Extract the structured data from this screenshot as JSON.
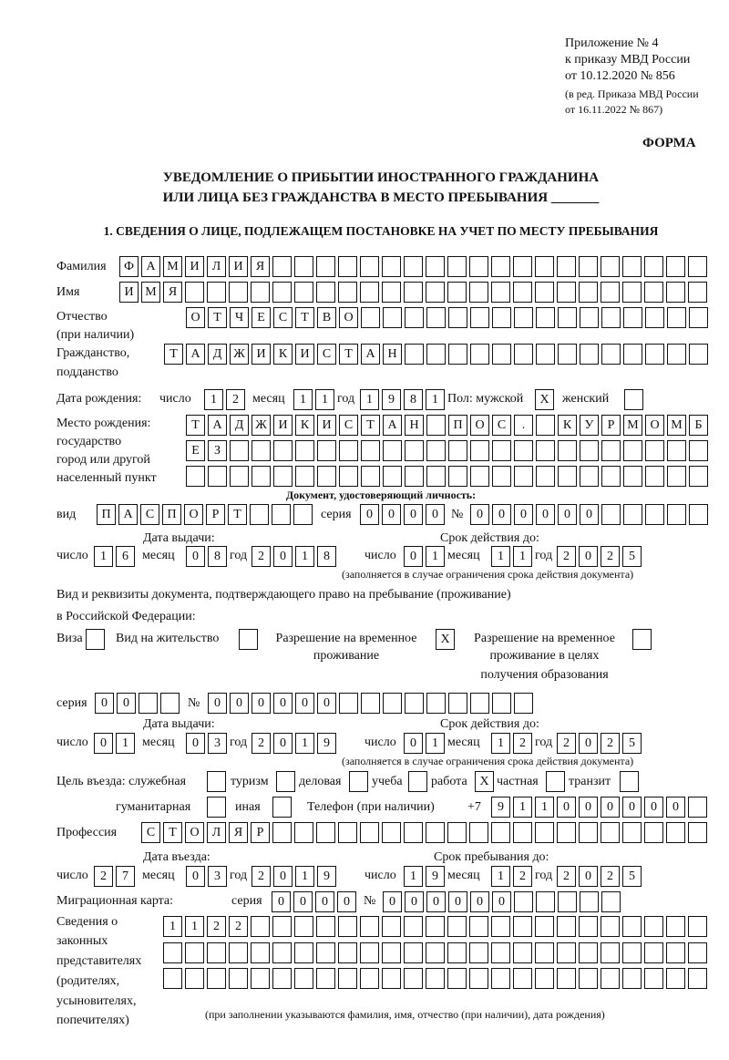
{
  "header": {
    "appendix_line1": "Приложение № 4",
    "appendix_line2": "к приказу МВД России",
    "appendix_line3": "от 10.12.2020 № 856",
    "edition_line1": "(в ред. Приказа МВД России",
    "edition_line2": "от 16.11.2022 № 867)",
    "form_label": "ФОРМА",
    "title_line1": "УВЕДОМЛЕНИЕ О ПРИБЫТИИ ИНОСТРАННОГО ГРАЖДАНИНА",
    "title_line2": "ИЛИ ЛИЦА БЕЗ ГРАЖДАНСТВА В МЕСТО ПРЕБЫВАНИЯ _______",
    "section1_title": "1. СВЕДЕНИЯ О ЛИЦЕ, ПОДЛЕЖАЩЕМ ПОСТАНОВКЕ НА УЧЕТ ПО МЕСТУ ПРЕБЫВАНИЯ"
  },
  "person": {
    "surname": {
      "label": "Фамилия",
      "value": "ФАМИЛИЯ"
    },
    "name": {
      "label": "Имя",
      "value": "ИМЯ"
    },
    "patronymic": {
      "label": "Отчество",
      "label_note": "(при наличии)",
      "value": "ОТЧЕСТВО"
    },
    "citizenship": {
      "label1": "Гражданство,",
      "label2": "подданство",
      "value": "ТАДЖИКИСТАН"
    },
    "birth_date": {
      "label": "Дата рождения:",
      "day_label": "число",
      "day": "12",
      "month_label": "месяц",
      "month": "11",
      "year_label": "год",
      "year": "1981"
    },
    "sex": {
      "male_label": "Пол: мужской",
      "male": "X",
      "female_label": "женский",
      "female": ""
    },
    "birth_place": {
      "label1": "Место рождения:",
      "label2": "государство",
      "label3": "город или другой",
      "label4": "населенный пункт",
      "row1": "ТАДЖИКИСТАН ПОС. КУРМОМБ",
      "row2": "ЕЗ",
      "row3": ""
    }
  },
  "id_document": {
    "heading": "Документ, удостоверяющий личность:",
    "type_label": "вид",
    "type": "ПАСПОРТ",
    "series_label": "серия",
    "series": "0000",
    "number_label": "№",
    "number": "000000",
    "issue_heading": "Дата выдачи:",
    "issue": {
      "day_label": "число",
      "day": "16",
      "month_label": "месяц",
      "month": "08",
      "year_label": "год",
      "year": "2018"
    },
    "valid_heading": "Срок действия до:",
    "valid": {
      "day_label": "число",
      "day": "01",
      "month_label": "месяц",
      "month": "11",
      "year_label": "год",
      "year": "2025"
    },
    "note": "(заполняется в случае ограничения срока действия документа)"
  },
  "stay_document": {
    "heading_line1": "Вид и реквизиты документа, подтверждающего право на пребывание (проживание)",
    "heading_line2": "в Российской Федерации:",
    "visa_label": "Виза",
    "visa": "",
    "residence_label": "Вид на жительство",
    "residence": "",
    "temp_label1": "Разрешение на временное",
    "temp_label2": "проживание",
    "temp": "X",
    "edu_label1": "Разрешение на временное",
    "edu_label2": "проживание в целях",
    "edu_label3": "получения образования",
    "edu": "",
    "series_label": "серия",
    "series": "00",
    "number_label": "№",
    "number": "000000",
    "issue_heading": "Дата выдачи:",
    "issue": {
      "day_label": "число",
      "day": "01",
      "month_label": "месяц",
      "month": "03",
      "year_label": "год",
      "year": "2019"
    },
    "valid_heading": "Срок действия до:",
    "valid": {
      "day_label": "число",
      "day": "01",
      "month_label": "месяц",
      "month": "12",
      "year_label": "год",
      "year": "2025"
    },
    "note": "(заполняется в случае ограничения срока действия документа)"
  },
  "purpose": {
    "label": "Цель въезда: служебная",
    "official": "",
    "tourism_label": "туризм",
    "tourism": "",
    "business_label": "деловая",
    "business": "",
    "study_label": "учеба",
    "study": "",
    "work_label": "работа",
    "work": "X",
    "private_label": "частная",
    "private": "",
    "transit_label": "транзит",
    "transit": "",
    "humanitarian_label": "гуманитарная",
    "humanitarian": "",
    "other_label": "иная",
    "other": ""
  },
  "phone": {
    "label": "Телефон (при наличии)",
    "prefix": "+7",
    "value": "911000000"
  },
  "profession": {
    "label": "Профессия",
    "value": "СТОЛЯР"
  },
  "entry": {
    "entry_heading": "Дата въезда:",
    "entry": {
      "day_label": "число",
      "day": "27",
      "month_label": "месяц",
      "month": "03",
      "year_label": "год",
      "year": "2019"
    },
    "stay_heading": "Срок пребывания до:",
    "stay": {
      "day_label": "число",
      "day": "19",
      "month_label": "месяц",
      "month": "12",
      "year_label": "год",
      "year": "2025"
    }
  },
  "migration_card": {
    "label": "Миграционная карта:",
    "series_label": "серия",
    "series": "0000",
    "number_label": "№",
    "number": "000000"
  },
  "representatives": {
    "label1": "Сведения о",
    "label2": "законных",
    "label3": "представителях",
    "label4": "(родителях,",
    "label5": "усыновителях,",
    "label6": "попечителях)",
    "row1": "1122",
    "row2": "",
    "row3": "",
    "note": "(при заполнении указываются фамилия, имя, отчество (при наличии), дата рождения)"
  }
}
